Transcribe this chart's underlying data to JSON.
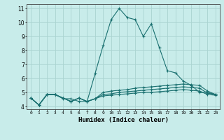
{
  "title": "",
  "xlabel": "Humidex (Indice chaleur)",
  "background_color": "#c8ecea",
  "grid_color": "#aad4d0",
  "line_color": "#1a7070",
  "xlim": [
    -0.5,
    23.5
  ],
  "ylim": [
    3.8,
    11.3
  ],
  "yticks": [
    4,
    5,
    6,
    7,
    8,
    9,
    10,
    11
  ],
  "xticks": [
    0,
    1,
    2,
    3,
    4,
    5,
    6,
    7,
    8,
    9,
    10,
    11,
    12,
    13,
    14,
    15,
    16,
    17,
    18,
    19,
    20,
    21,
    22,
    23
  ],
  "xtick_labels": [
    "0",
    "1",
    "2",
    "3",
    "4",
    "5",
    "6",
    "7",
    "8",
    "9",
    "10",
    "11",
    "12",
    "13",
    "14",
    "15",
    "16",
    "17",
    "18",
    "19",
    "20",
    "21",
    "22",
    "23"
  ],
  "series": [
    {
      "x": [
        0,
        1,
        2,
        3,
        4,
        5,
        6,
        7,
        8,
        9,
        10,
        11,
        12,
        13,
        14,
        15,
        16,
        17,
        18,
        19,
        20,
        21,
        22,
        23
      ],
      "y": [
        4.6,
        4.1,
        4.85,
        4.85,
        4.55,
        4.55,
        4.35,
        4.35,
        6.35,
        8.35,
        10.2,
        11.0,
        10.35,
        10.2,
        9.0,
        9.9,
        8.2,
        6.55,
        6.4,
        5.8,
        5.5,
        5.0,
        5.0,
        4.85
      ]
    },
    {
      "x": [
        0,
        1,
        2,
        3,
        4,
        5,
        6,
        7,
        8,
        9,
        10,
        11,
        12,
        13,
        14,
        15,
        16,
        17,
        18,
        19,
        20,
        21,
        22,
        23
      ],
      "y": [
        4.6,
        4.1,
        4.85,
        4.85,
        4.6,
        4.35,
        4.6,
        4.35,
        4.55,
        5.0,
        5.1,
        5.15,
        5.2,
        5.3,
        5.35,
        5.4,
        5.45,
        5.5,
        5.55,
        5.6,
        5.55,
        5.5,
        5.1,
        4.85
      ]
    },
    {
      "x": [
        0,
        1,
        2,
        3,
        4,
        5,
        6,
        7,
        8,
        9,
        10,
        11,
        12,
        13,
        14,
        15,
        16,
        17,
        18,
        19,
        20,
        21,
        22,
        23
      ],
      "y": [
        4.6,
        4.1,
        4.85,
        4.85,
        4.6,
        4.35,
        4.6,
        4.35,
        4.55,
        4.85,
        4.9,
        5.0,
        5.05,
        5.1,
        5.15,
        5.2,
        5.25,
        5.3,
        5.35,
        5.4,
        5.35,
        5.3,
        4.95,
        4.85
      ]
    },
    {
      "x": [
        0,
        1,
        2,
        3,
        4,
        5,
        6,
        7,
        8,
        9,
        10,
        11,
        12,
        13,
        14,
        15,
        16,
        17,
        18,
        19,
        20,
        21,
        22,
        23
      ],
      "y": [
        4.6,
        4.1,
        4.85,
        4.85,
        4.6,
        4.35,
        4.6,
        4.35,
        4.55,
        4.75,
        4.8,
        4.85,
        4.9,
        4.95,
        5.0,
        5.0,
        5.05,
        5.1,
        5.15,
        5.2,
        5.15,
        5.1,
        4.85,
        4.8
      ]
    }
  ]
}
